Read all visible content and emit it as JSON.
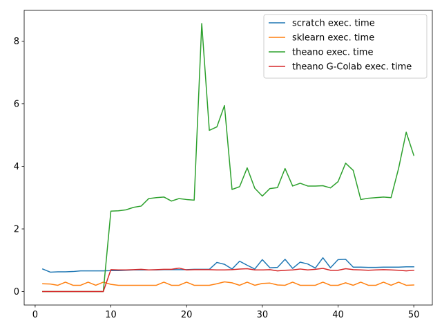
{
  "chart_data": {
    "type": "line",
    "title": "",
    "xlabel": "",
    "ylabel": "",
    "xlim": [
      -1.45,
      52.45
    ],
    "ylim": [
      -0.43,
      8.98
    ],
    "xticks": [
      0,
      10,
      20,
      30,
      40,
      50
    ],
    "yticks": [
      0,
      2,
      4,
      6,
      8
    ],
    "grid": false,
    "legend": "top-right",
    "x": [
      1,
      2,
      3,
      4,
      5,
      6,
      7,
      8,
      9,
      10,
      11,
      12,
      13,
      14,
      15,
      16,
      17,
      18,
      19,
      20,
      21,
      22,
      23,
      24,
      25,
      26,
      27,
      28,
      29,
      30,
      31,
      32,
      33,
      34,
      35,
      36,
      37,
      38,
      39,
      40,
      41,
      42,
      43,
      44,
      45,
      46,
      47,
      48,
      49,
      50
    ],
    "series": [
      {
        "name": "scratch exec. time",
        "color": "#1f77b4",
        "values": [
          0.72,
          0.62,
          0.63,
          0.63,
          0.64,
          0.66,
          0.66,
          0.66,
          0.66,
          0.67,
          0.67,
          0.68,
          0.69,
          0.69,
          0.69,
          0.69,
          0.7,
          0.7,
          0.7,
          0.7,
          0.71,
          0.71,
          0.71,
          0.93,
          0.87,
          0.72,
          0.97,
          0.84,
          0.72,
          1.02,
          0.76,
          0.77,
          1.03,
          0.74,
          0.94,
          0.88,
          0.75,
          1.08,
          0.76,
          1.02,
          1.03,
          0.78,
          0.78,
          0.77,
          0.77,
          0.78,
          0.78,
          0.78,
          0.79,
          0.79
        ]
      },
      {
        "name": "sklearn exec. time",
        "color": "#ff7f0e",
        "values": [
          0.25,
          0.24,
          0.2,
          0.3,
          0.2,
          0.2,
          0.3,
          0.2,
          0.3,
          0.23,
          0.2,
          0.2,
          0.2,
          0.2,
          0.2,
          0.2,
          0.3,
          0.2,
          0.2,
          0.3,
          0.2,
          0.2,
          0.2,
          0.25,
          0.31,
          0.28,
          0.2,
          0.3,
          0.2,
          0.26,
          0.27,
          0.21,
          0.2,
          0.3,
          0.2,
          0.2,
          0.2,
          0.3,
          0.2,
          0.2,
          0.28,
          0.2,
          0.3,
          0.2,
          0.2,
          0.3,
          0.2,
          0.3,
          0.2,
          0.21
        ]
      },
      {
        "name": "theano exec. time",
        "color": "#2ca02c",
        "values": [
          0,
          0,
          0,
          0,
          0,
          0,
          0,
          0,
          0,
          2.57,
          2.58,
          2.61,
          2.69,
          2.73,
          2.97,
          3.0,
          3.02,
          2.89,
          2.97,
          2.94,
          2.92,
          8.56,
          5.15,
          5.26,
          5.94,
          3.26,
          3.35,
          3.95,
          3.3,
          3.05,
          3.29,
          3.32,
          3.93,
          3.37,
          3.46,
          3.37,
          3.37,
          3.38,
          3.31,
          3.51,
          4.1,
          3.87,
          2.94,
          2.98,
          3.0,
          3.02,
          3.0,
          3.94,
          5.09,
          4.35
        ]
      },
      {
        "name": "theano G-Colab exec. time",
        "color": "#d62728",
        "values": [
          0,
          0,
          0,
          0,
          0,
          0,
          0,
          0,
          0,
          0.7,
          0.69,
          0.69,
          0.7,
          0.71,
          0.69,
          0.7,
          0.71,
          0.71,
          0.75,
          0.69,
          0.7,
          0.7,
          0.7,
          0.69,
          0.69,
          0.7,
          0.72,
          0.73,
          0.69,
          0.69,
          0.7,
          0.66,
          0.68,
          0.69,
          0.72,
          0.69,
          0.71,
          0.74,
          0.68,
          0.68,
          0.73,
          0.7,
          0.69,
          0.68,
          0.69,
          0.7,
          0.69,
          0.68,
          0.66,
          0.68
        ]
      }
    ]
  }
}
